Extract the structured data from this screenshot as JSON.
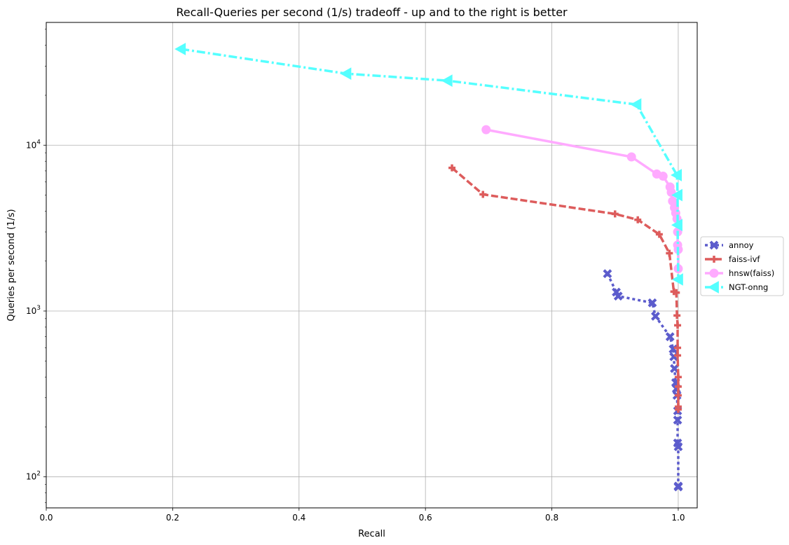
{
  "chart_data": {
    "type": "line",
    "title": "Recall-Queries per second (1/s) tradeoff - up and to the right is better",
    "xlabel": "Recall",
    "ylabel": "Queries per second (1/s)",
    "x_scale": "linear",
    "y_scale": "log",
    "xlim": [
      0.0,
      1.03
    ],
    "ylim": [
      65,
      55000
    ],
    "grid": true,
    "legend_position": "center-right outside",
    "x_ticks": [
      {
        "value": 0.0,
        "label": "0.0"
      },
      {
        "value": 0.2,
        "label": "0.2"
      },
      {
        "value": 0.4,
        "label": "0.4"
      },
      {
        "value": 0.6,
        "label": "0.6"
      },
      {
        "value": 0.8,
        "label": "0.8"
      },
      {
        "value": 1.0,
        "label": "1.0"
      }
    ],
    "y_ticks": [
      {
        "value": 100,
        "base": "10",
        "exp": "2"
      },
      {
        "value": 1000,
        "base": "10",
        "exp": "3"
      },
      {
        "value": 10000,
        "base": "10",
        "exp": "4"
      }
    ],
    "series": [
      {
        "name": "annoy",
        "color": "#5c5ccc",
        "dash": "dotted",
        "marker": "x",
        "x": [
          0.888,
          0.902,
          0.905,
          0.959,
          0.964,
          0.987,
          0.992,
          0.993,
          0.994,
          0.996,
          0.997,
          0.998,
          0.999,
          0.999,
          0.999,
          1.0,
          1.0,
          1.0
        ],
        "y": [
          1680,
          1300,
          1230,
          1120,
          930,
          700,
          590,
          530,
          450,
          370,
          340,
          310,
          250,
          220,
          160,
          152,
          88,
          87
        ]
      },
      {
        "name": "faiss-ivf",
        "color": "#dd5c5c",
        "dash": "dashed",
        "marker": "plus",
        "x": [
          0.642,
          0.691,
          0.9,
          0.936,
          0.97,
          0.986,
          0.993,
          0.997,
          0.998,
          0.999,
          0.999,
          0.999,
          1.0,
          1.0,
          1.0,
          1.0,
          1.0
        ],
        "y": [
          7300,
          5050,
          3850,
          3550,
          2900,
          2230,
          1310,
          1290,
          940,
          820,
          600,
          540,
          400,
          350,
          310,
          265,
          255
        ]
      },
      {
        "name": "hnsw(faiss)",
        "color": "#ffaaff",
        "dash": "solid",
        "marker": "circle",
        "x": [
          0.696,
          0.926,
          0.966,
          0.976,
          0.987,
          0.989,
          0.991,
          0.994,
          0.996,
          0.998,
          0.999,
          0.999,
          1.0,
          1.0
        ],
        "y": [
          12400,
          8500,
          6700,
          6500,
          5600,
          5200,
          4600,
          4200,
          3900,
          3600,
          3000,
          2500,
          2350,
          1800
        ]
      },
      {
        "name": "NGT-onng",
        "color": "#55ffff",
        "dash": "dashdot",
        "marker": "triangle-left",
        "x": [
          0.213,
          0.475,
          0.635,
          0.934,
          0.998,
          0.999,
          0.999,
          1.0
        ],
        "y": [
          38000,
          27000,
          24500,
          17600,
          6600,
          5000,
          3300,
          1550
        ]
      }
    ]
  }
}
